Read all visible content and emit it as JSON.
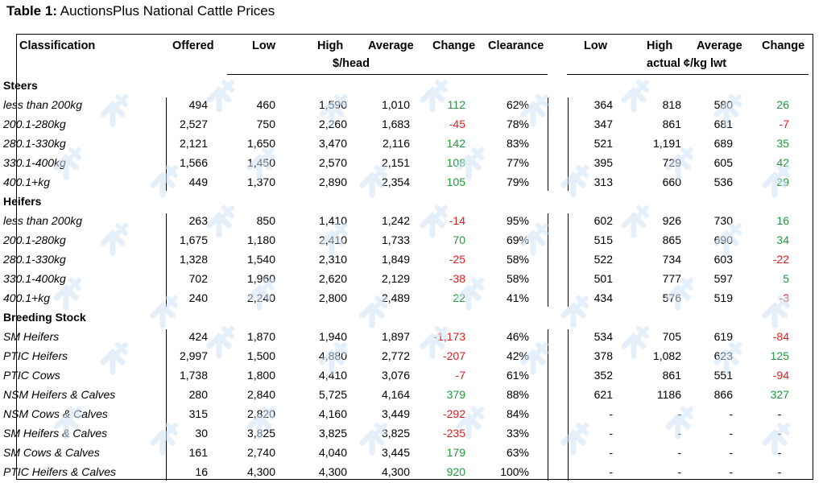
{
  "title": {
    "bold": "Table 1:",
    "rest": "AuctionsPlus National Cattle Prices"
  },
  "columns": {
    "classification": "Classification",
    "offered": "Offered",
    "low": "Low",
    "high": "High",
    "average": "Average",
    "change": "Change",
    "clearance": "Clearance",
    "low2": "Low",
    "high2": "High",
    "average2": "Average",
    "change2": "Change",
    "unit_head": "$/head",
    "unit_kg": "actual ¢/kg lwt"
  },
  "sections": [
    {
      "name": "Steers",
      "rows": [
        {
          "label": "less than 200kg",
          "offered": "494",
          "low": "460",
          "high": "1,590",
          "avg": "1,010",
          "change": "112",
          "clearance": "62%",
          "low2": "364",
          "high2": "818",
          "avg2": "580",
          "change2": "26"
        },
        {
          "label": "200.1-280kg",
          "offered": "2,527",
          "low": "750",
          "high": "2,260",
          "avg": "1,683",
          "change": "-45",
          "clearance": "78%",
          "low2": "347",
          "high2": "861",
          "avg2": "681",
          "change2": "-7"
        },
        {
          "label": "280.1-330kg",
          "offered": "2,121",
          "low": "1,650",
          "high": "3,470",
          "avg": "2,116",
          "change": "142",
          "clearance": "83%",
          "low2": "521",
          "high2": "1,191",
          "avg2": "689",
          "change2": "35"
        },
        {
          "label": "330.1-400kg",
          "offered": "1,566",
          "low": "1,450",
          "high": "2,570",
          "avg": "2,151",
          "change": "108",
          "clearance": "77%",
          "low2": "395",
          "high2": "729",
          "avg2": "605",
          "change2": "42"
        },
        {
          "label": "400.1+kg",
          "offered": "449",
          "low": "1,370",
          "high": "2,890",
          "avg": "2,354",
          "change": "105",
          "clearance": "79%",
          "low2": "313",
          "high2": "660",
          "avg2": "536",
          "change2": "29"
        }
      ]
    },
    {
      "name": "Heifers",
      "rows": [
        {
          "label": "less than 200kg",
          "offered": "263",
          "low": "850",
          "high": "1,410",
          "avg": "1,242",
          "change": "-14",
          "clearance": "95%",
          "low2": "602",
          "high2": "926",
          "avg2": "730",
          "change2": "16"
        },
        {
          "label": "200.1-280kg",
          "offered": "1,675",
          "low": "1,180",
          "high": "2,410",
          "avg": "1,733",
          "change": "70",
          "clearance": "69%",
          "low2": "515",
          "high2": "865",
          "avg2": "690",
          "change2": "34"
        },
        {
          "label": "280.1-330kg",
          "offered": "1,328",
          "low": "1,540",
          "high": "2,310",
          "avg": "1,849",
          "change": "-25",
          "clearance": "58%",
          "low2": "522",
          "high2": "734",
          "avg2": "603",
          "change2": "-22"
        },
        {
          "label": "330.1-400kg",
          "offered": "702",
          "low": "1,960",
          "high": "2,620",
          "avg": "2,129",
          "change": "-38",
          "clearance": "58%",
          "low2": "501",
          "high2": "777",
          "avg2": "597",
          "change2": "5"
        },
        {
          "label": "400.1+kg",
          "offered": "240",
          "low": "2,240",
          "high": "2,800",
          "avg": "2,489",
          "change": "22",
          "clearance": "41%",
          "low2": "434",
          "high2": "576",
          "avg2": "519",
          "change2": "-3"
        }
      ]
    },
    {
      "name": "Breeding Stock",
      "rows": [
        {
          "label": "SM Heifers",
          "offered": "424",
          "low": "1,870",
          "high": "1,940",
          "avg": "1,897",
          "change": "-1,173",
          "clearance": "46%",
          "low2": "534",
          "high2": "705",
          "avg2": "619",
          "change2": "-84"
        },
        {
          "label": "PTIC Heifers",
          "offered": "2,997",
          "low": "1,500",
          "high": "4,880",
          "avg": "2,772",
          "change": "-207",
          "clearance": "42%",
          "low2": "378",
          "high2": "1,082",
          "avg2": "623",
          "change2": "125"
        },
        {
          "label": "PTIC Cows",
          "offered": "1,738",
          "low": "1,800",
          "high": "4,410",
          "avg": "3,076",
          "change": "-7",
          "clearance": "61%",
          "low2": "352",
          "high2": "861",
          "avg2": "551",
          "change2": "-94"
        },
        {
          "label": "NSM Heifers & Calves",
          "offered": "280",
          "low": "2,840",
          "high": "5,725",
          "avg": "4,164",
          "change": "379",
          "clearance": "88%",
          "low2": "621",
          "high2": "1186",
          "avg2": "866",
          "change2": "327"
        },
        {
          "label": "NSM Cows & Calves",
          "offered": "315",
          "low": "2,820",
          "high": "4,160",
          "avg": "3,449",
          "change": "-292",
          "clearance": "84%",
          "low2": "-",
          "high2": "-",
          "avg2": "-",
          "change2": "-"
        },
        {
          "label": "SM Heifers & Calves",
          "offered": "30",
          "low": "3,825",
          "high": "3,825",
          "avg": "3,825",
          "change": "-235",
          "clearance": "33%",
          "low2": "-",
          "high2": "-",
          "avg2": "-",
          "change2": "-"
        },
        {
          "label": "SM Cows & Calves",
          "offered": "161",
          "low": "2,740",
          "high": "4,040",
          "avg": "3,445",
          "change": "179",
          "clearance": "63%",
          "low2": "-",
          "high2": "-",
          "avg2": "-",
          "change2": "-"
        },
        {
          "label": "PTIC Heifers & Calves",
          "offered": "16",
          "low": "4,300",
          "high": "4,300",
          "avg": "4,300",
          "change": "920",
          "clearance": "100%",
          "low2": "-",
          "high2": "-",
          "avg2": "-",
          "change2": "-"
        }
      ]
    }
  ],
  "colors": {
    "positive": "#1f9a3c",
    "negative": "#e01e1e",
    "watermark": "#cfe3f7"
  }
}
